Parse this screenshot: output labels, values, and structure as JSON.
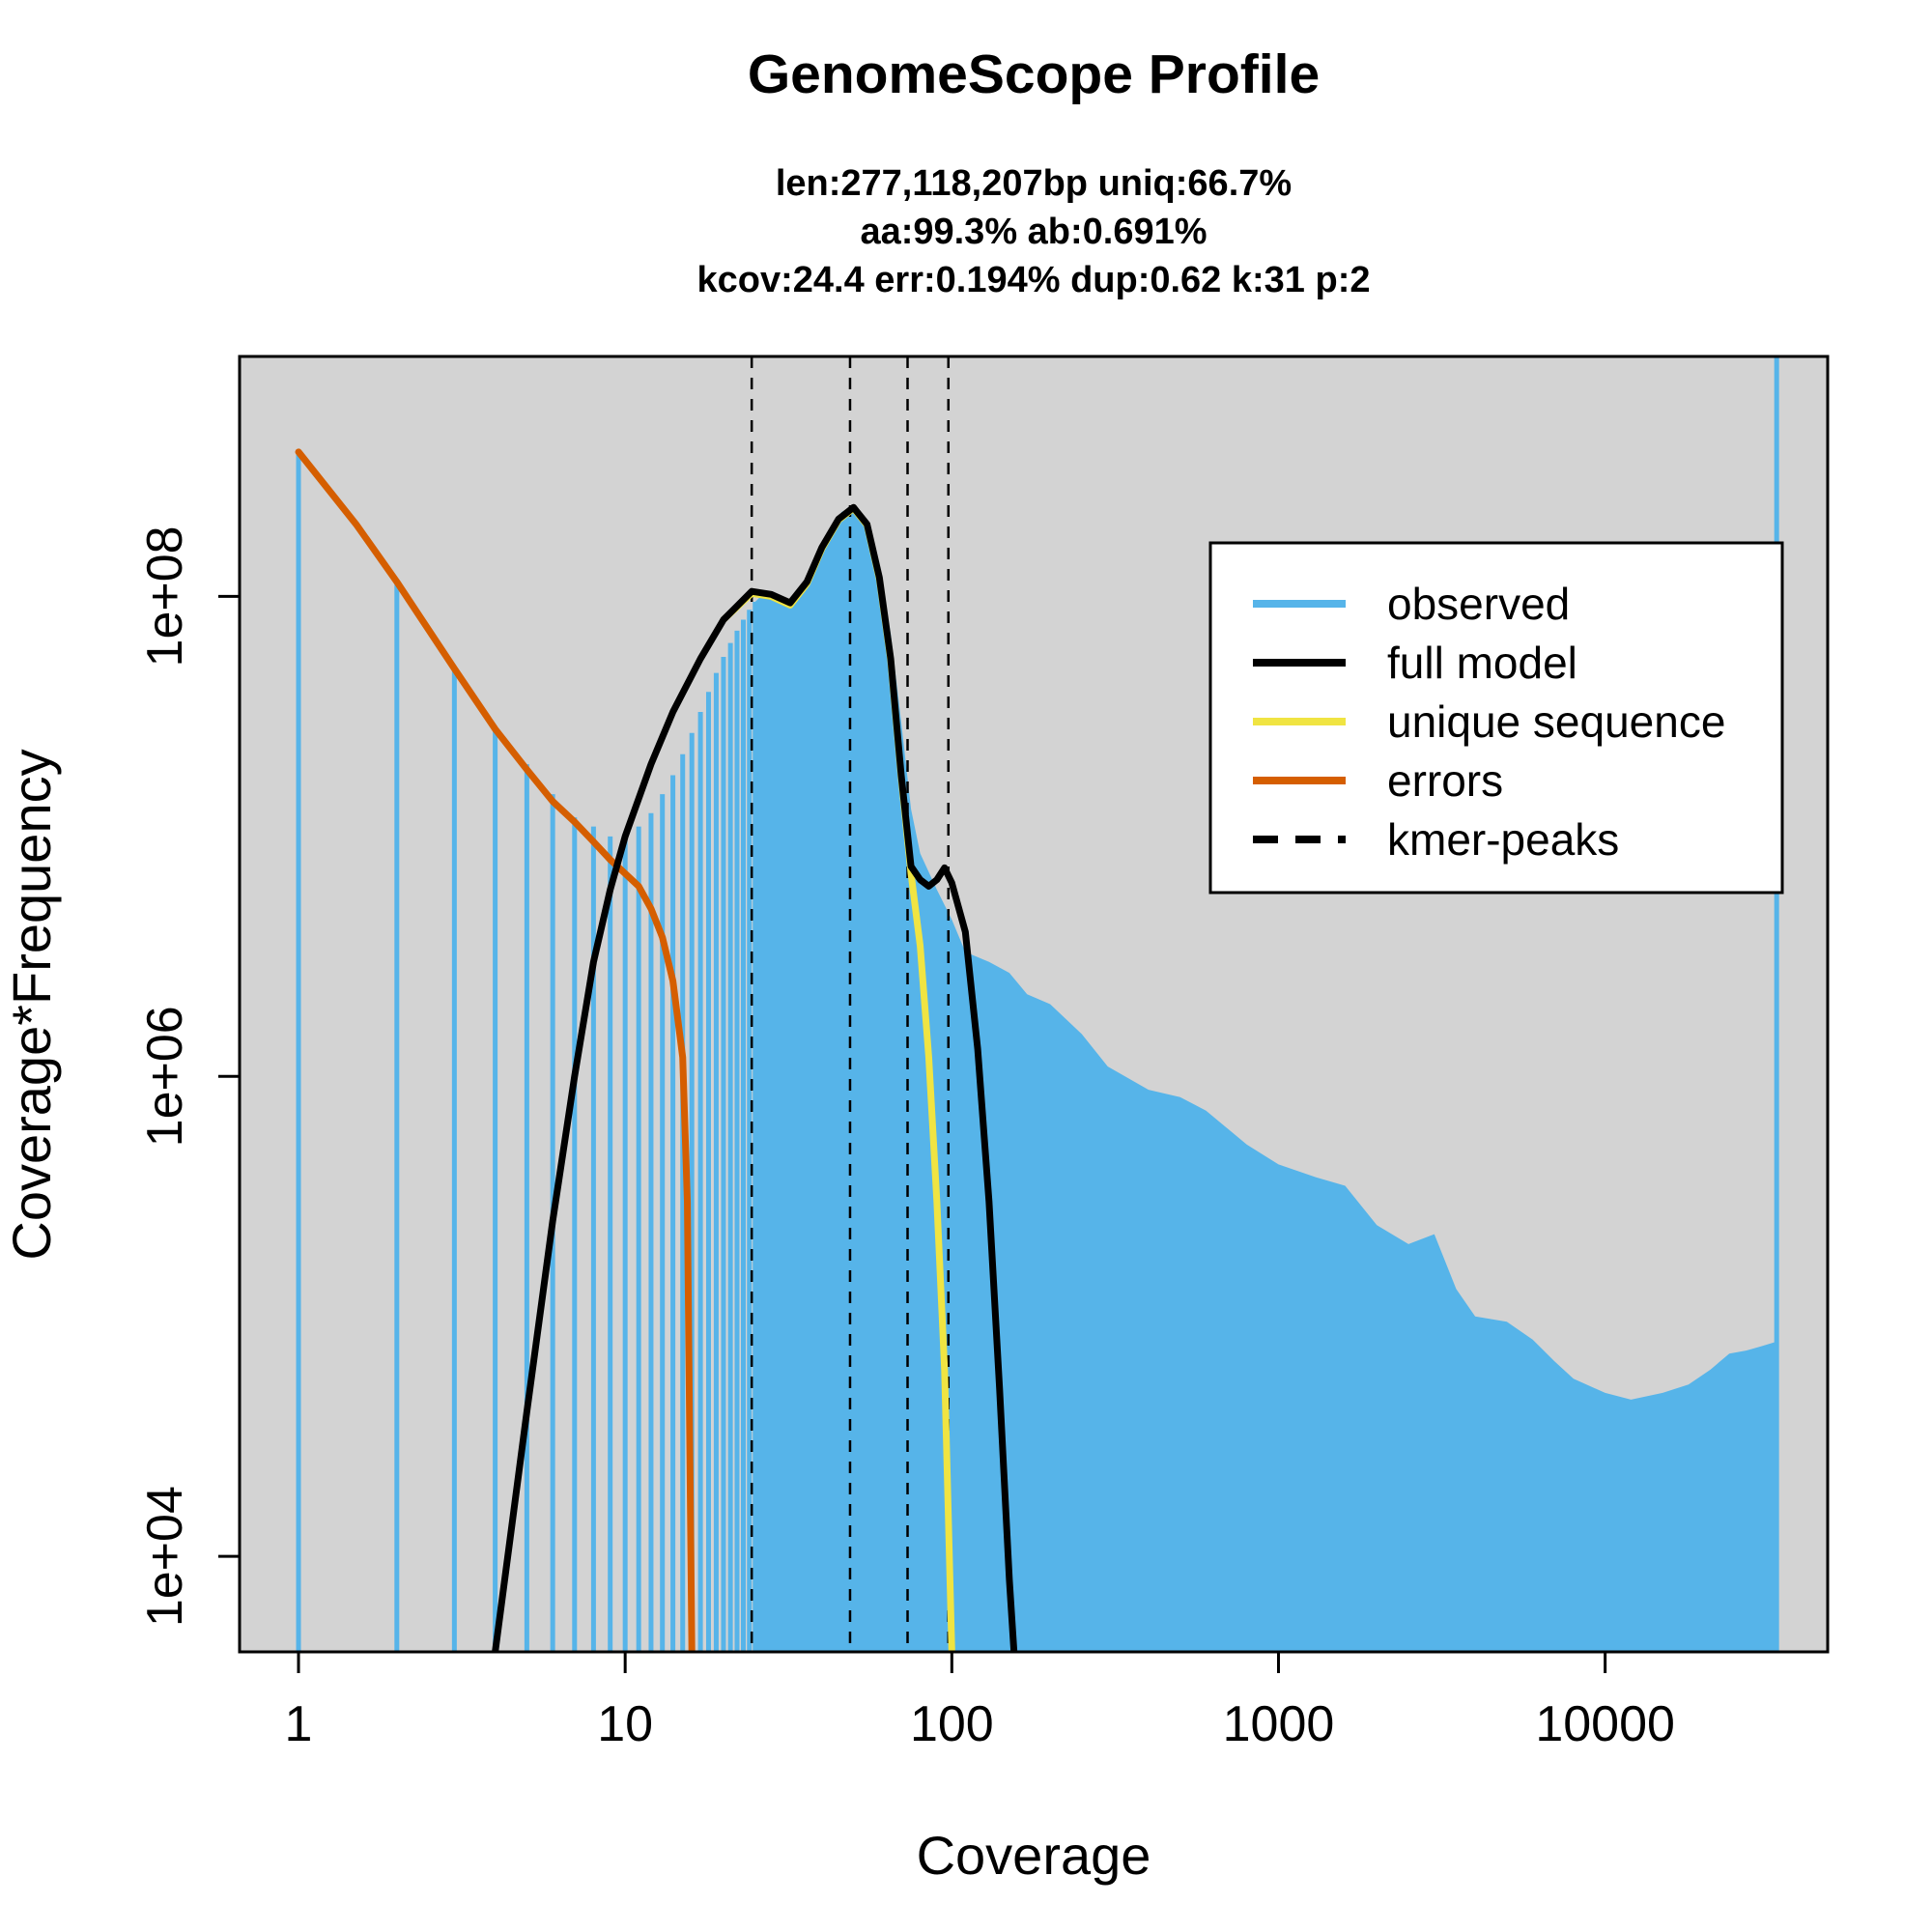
{
  "chart_data": {
    "type": "line",
    "title": "GenomeScope Profile",
    "subtitle_lines": [
      "len:277,118,207bp uniq:66.7%",
      "aa:99.3% ab:0.691%",
      "kcov:24.4 err:0.194%  dup:0.62  k:31 p:2"
    ],
    "xlabel": "Coverage",
    "ylabel": "Coverage*Frequency",
    "x_scale": "log",
    "y_scale": "log",
    "xlim": [
      0.66,
      48000
    ],
    "ylim": [
      4000,
      1000000000
    ],
    "x_ticks": [
      {
        "value": 1,
        "label": "1"
      },
      {
        "value": 10,
        "label": "10"
      },
      {
        "value": 100,
        "label": "100"
      },
      {
        "value": 1000,
        "label": "1000"
      },
      {
        "value": 10000,
        "label": "10000"
      }
    ],
    "y_ticks": [
      {
        "value": 10000,
        "label": "1e+04"
      },
      {
        "value": 1000000,
        "label": "1e+06"
      },
      {
        "value": 100000000,
        "label": "1e+08"
      }
    ],
    "grid": false,
    "legend_position": "top-right",
    "colors": {
      "background": "#d3d3d3",
      "observed": "#56b4e9",
      "full_model": "#000000",
      "unique_sequence": "#f0e442",
      "errors": "#d55e00",
      "kmer_peaks": "#000000"
    },
    "legend": [
      {
        "name": "observed",
        "color": "#56b4e9",
        "dash": false
      },
      {
        "name": "full model",
        "color": "#000000",
        "dash": false
      },
      {
        "name": "unique sequence",
        "color": "#f0e442",
        "dash": false
      },
      {
        "name": "errors",
        "color": "#d55e00",
        "dash": false
      },
      {
        "name": "kmer-peaks",
        "color": "#000000",
        "dash": true
      }
    ],
    "kmer_peaks": [
      24.4,
      48.8,
      73.2,
      97.6
    ],
    "observed_discrete": [
      [
        1,
        400000000
      ],
      [
        2,
        115000000
      ],
      [
        3,
        50000000
      ],
      [
        4,
        28000000
      ],
      [
        5,
        20000000
      ],
      [
        6,
        15000000
      ],
      [
        7,
        12000000
      ],
      [
        8,
        11000000
      ],
      [
        9,
        10000000
      ],
      [
        10,
        10000000
      ],
      [
        11,
        11000000
      ],
      [
        12,
        12500000
      ],
      [
        13,
        15000000
      ],
      [
        14,
        18000000
      ],
      [
        15,
        22000000
      ],
      [
        16,
        27000000
      ],
      [
        17,
        33000000
      ],
      [
        18,
        40000000
      ],
      [
        19,
        48000000
      ],
      [
        20,
        56000000
      ],
      [
        21,
        64000000
      ],
      [
        22,
        72000000
      ],
      [
        23,
        80000000
      ],
      [
        24,
        88000000
      ],
      [
        25,
        95000000
      ]
    ],
    "observed_envelope": [
      [
        25,
        95000000
      ],
      [
        27,
        105000000
      ],
      [
        30,
        95000000
      ],
      [
        33,
        93000000
      ],
      [
        37,
        120000000
      ],
      [
        42,
        180000000
      ],
      [
        46,
        225000000
      ],
      [
        50,
        235000000
      ],
      [
        55,
        200000000
      ],
      [
        60,
        130000000
      ],
      [
        65,
        70000000
      ],
      [
        70,
        30000000
      ],
      [
        75,
        13000000
      ],
      [
        80,
        8500000
      ],
      [
        90,
        6000000
      ],
      [
        100,
        4500000
      ],
      [
        110,
        3300000
      ],
      [
        130,
        3000000
      ],
      [
        150,
        2700000
      ],
      [
        170,
        2200000
      ],
      [
        200,
        2000000
      ],
      [
        250,
        1500000
      ],
      [
        300,
        1100000
      ],
      [
        400,
        880000
      ],
      [
        500,
        820000
      ],
      [
        600,
        720000
      ],
      [
        800,
        520000
      ],
      [
        1000,
        430000
      ],
      [
        1300,
        380000
      ],
      [
        1600,
        350000
      ],
      [
        2000,
        240000
      ],
      [
        2500,
        200000
      ],
      [
        3000,
        220000
      ],
      [
        3500,
        130000
      ],
      [
        4000,
        100000
      ],
      [
        5000,
        95000
      ],
      [
        6000,
        80000
      ],
      [
        7000,
        65000
      ],
      [
        8000,
        55000
      ],
      [
        10000,
        48000
      ],
      [
        12000,
        45000
      ],
      [
        15000,
        48000
      ],
      [
        18000,
        52000
      ],
      [
        21000,
        60000
      ],
      [
        24000,
        70000
      ],
      [
        27000,
        72000
      ],
      [
        30000,
        75000
      ],
      [
        33000,
        78000
      ]
    ],
    "observed_spike": [
      33500,
      1600000000
    ],
    "full_model": [
      [
        4,
        4000
      ],
      [
        5,
        40000
      ],
      [
        6,
        250000
      ],
      [
        7,
        1000000
      ],
      [
        8,
        3000000
      ],
      [
        9,
        6000000
      ],
      [
        10,
        10000000
      ],
      [
        12,
        20000000
      ],
      [
        14,
        33000000
      ],
      [
        17,
        55000000
      ],
      [
        20,
        80000000
      ],
      [
        24.4,
        105000000
      ],
      [
        28,
        102000000
      ],
      [
        32,
        94000000
      ],
      [
        36,
        115000000
      ],
      [
        40,
        160000000
      ],
      [
        45,
        210000000
      ],
      [
        50,
        235000000
      ],
      [
        55,
        200000000
      ],
      [
        60,
        120000000
      ],
      [
        65,
        55000000
      ],
      [
        70,
        18000000
      ],
      [
        75,
        7500000
      ],
      [
        80,
        6600000
      ],
      [
        85,
        6200000
      ],
      [
        90,
        6600000
      ],
      [
        95,
        7400000
      ],
      [
        100,
        6400000
      ],
      [
        110,
        4000000
      ],
      [
        120,
        1300000
      ],
      [
        130,
        300000
      ],
      [
        140,
        50000
      ],
      [
        150,
        8000
      ],
      [
        155,
        4000
      ]
    ],
    "unique_sequence": [
      [
        20,
        80000000
      ],
      [
        24.4,
        103000000
      ],
      [
        28,
        100000000
      ],
      [
        32,
        92000000
      ],
      [
        36,
        113000000
      ],
      [
        40,
        158000000
      ],
      [
        45,
        208000000
      ],
      [
        50,
        233000000
      ],
      [
        55,
        198000000
      ],
      [
        60,
        118000000
      ],
      [
        65,
        54000000
      ],
      [
        70,
        17500000
      ],
      [
        75,
        7000000
      ],
      [
        80,
        3500000
      ],
      [
        85,
        1200000
      ],
      [
        90,
        300000
      ],
      [
        95,
        60000
      ],
      [
        100,
        4000
      ]
    ],
    "errors": [
      [
        1,
        400000000
      ],
      [
        1.5,
        200000000
      ],
      [
        2,
        115000000
      ],
      [
        3,
        50000000
      ],
      [
        4,
        28000000
      ],
      [
        5,
        19000000
      ],
      [
        6,
        14000000
      ],
      [
        7,
        11500000
      ],
      [
        8,
        9500000
      ],
      [
        9,
        8000000
      ],
      [
        10,
        7000000
      ],
      [
        11,
        6200000
      ],
      [
        12,
        5000000
      ],
      [
        13,
        3800000
      ],
      [
        14,
        2500000
      ],
      [
        15,
        1200000
      ],
      [
        15.5,
        300000
      ],
      [
        16,
        4000
      ]
    ]
  }
}
